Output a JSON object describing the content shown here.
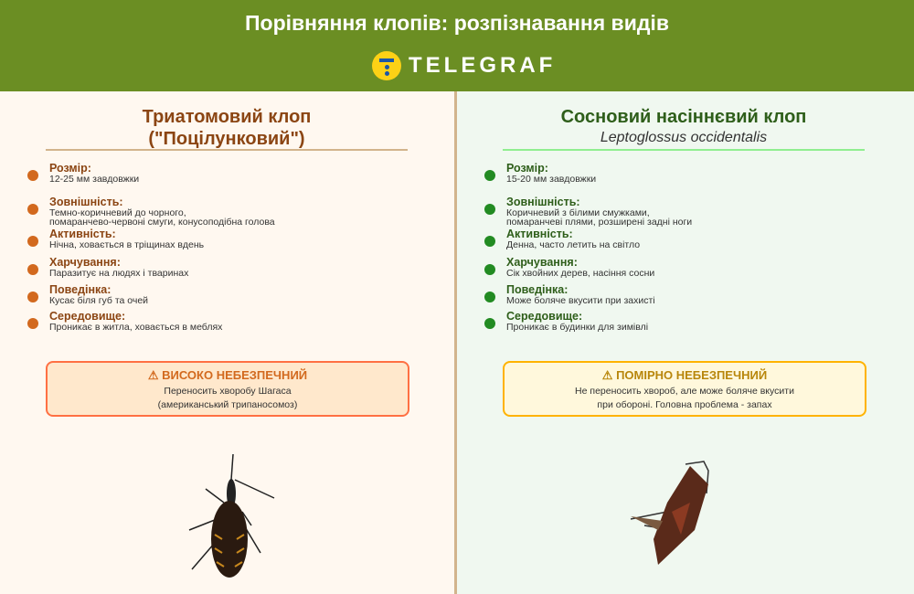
{
  "header": {
    "title": "Порівняння клопів: розпізнавання видів",
    "logo": "TELEGRAF"
  },
  "left": {
    "title_line1": "Триатомовий клоп",
    "title_line2": "(\"Поцілунковий\")",
    "items": [
      {
        "label": "Розмір:",
        "value": "12-25 мм завдовжки"
      },
      {
        "label": "Зовнішність:",
        "value_line1": "Темно-коричневий до чорного,",
        "value_line2": "помаранчево-червоні смуги, конусоподібна голова"
      },
      {
        "label": "Активність:",
        "value": "Нічна, ховається в тріщинах вдень"
      },
      {
        "label": "Харчування:",
        "value": "Паразитує на людях і тваринах"
      },
      {
        "label": "Поведінка:",
        "value": "Кусає біля губ та очей"
      },
      {
        "label": "Середовище:",
        "value": "Проникає в житла, ховається в меблях"
      }
    ],
    "alert": {
      "icon": "warning-icon",
      "title": "⚠ ВИСОКО НЕБЕЗПЕЧНИЙ",
      "line1": "Переносить хворобу Шагаса",
      "line2": "(американський трипаносомоз)"
    }
  },
  "right": {
    "title": "Сосновий насіннєвий клоп",
    "latin": "Leptoglossus occidentalis",
    "items": [
      {
        "label": "Розмір:",
        "value": "15-20 мм завдовжки"
      },
      {
        "label": "Зовнішність:",
        "value_line1": "Коричневий з білими смужками,",
        "value_line2": "помаранчеві плями, розширені задні ноги"
      },
      {
        "label": "Активність:",
        "value": "Денна, часто летить на світло"
      },
      {
        "label": "Харчування:",
        "value": "Сік хвойних дерев, насіння сосни"
      },
      {
        "label": "Поведінка:",
        "value": "Може боляче вкусити при захисті"
      },
      {
        "label": "Середовище:",
        "value": "Проникає в будинки для зимівлі"
      }
    ],
    "alert": {
      "icon": "warning-icon",
      "title": "⚠ ПОМІРНО НЕБЕЗПЕЧНИЙ",
      "line1": "Не переносить хвороб, але може боляче вкусити",
      "line2": "при обороні. Головна проблема - запах"
    }
  },
  "colors": {
    "header": "#6b8e23",
    "left_accent": "#8b4513",
    "right_accent": "#2e5e1a",
    "left_alert_border": "#ff7043",
    "right_alert_border": "#ffb300"
  }
}
